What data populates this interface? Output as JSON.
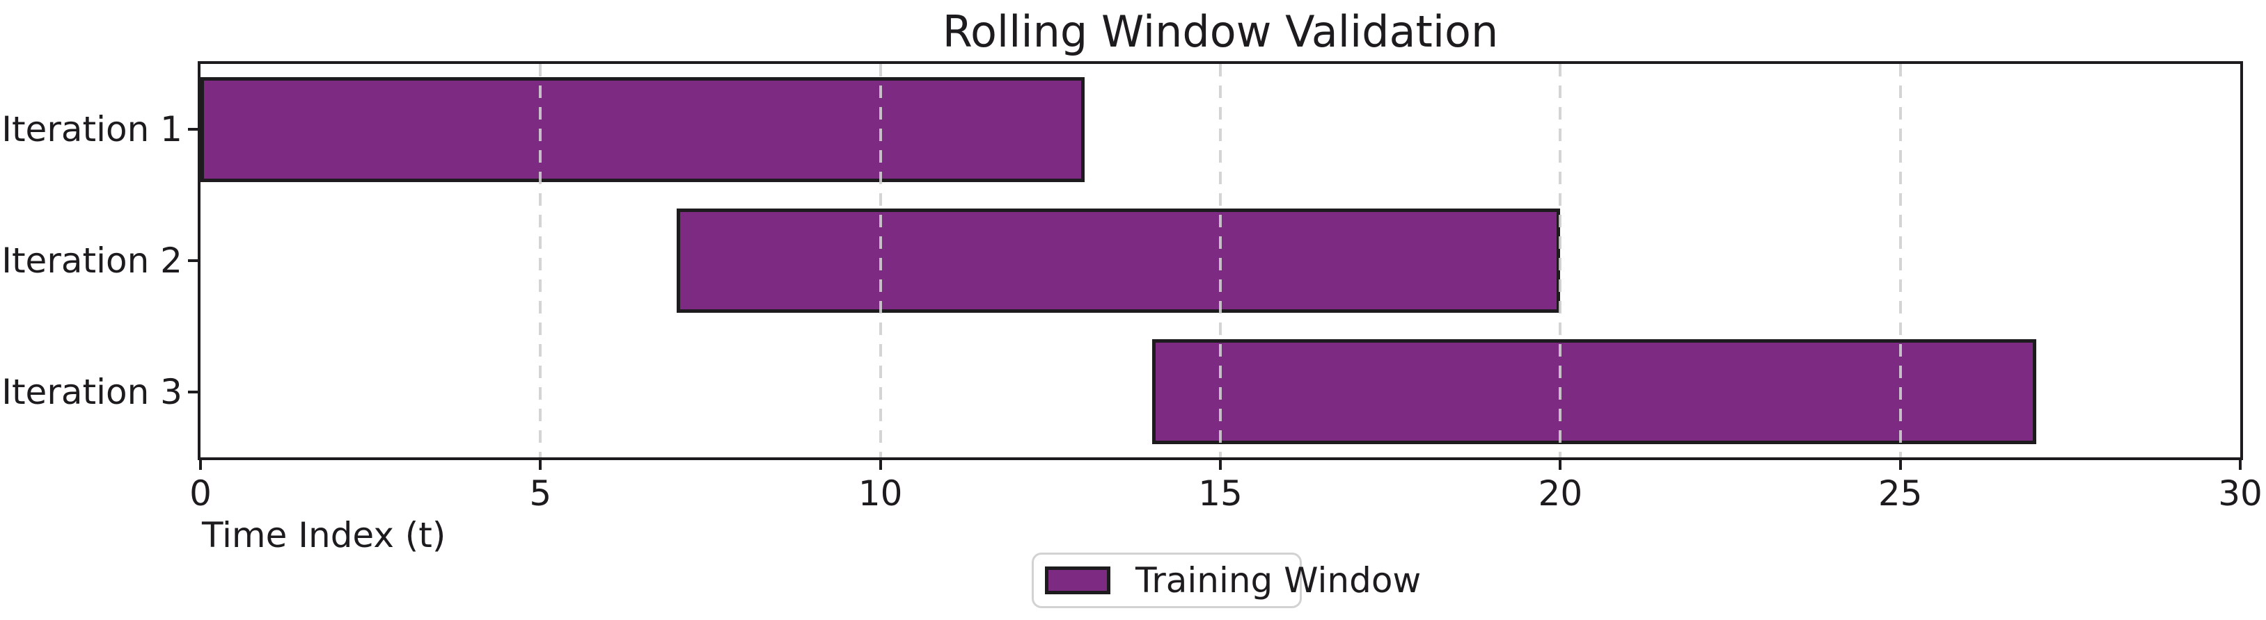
{
  "chart_data": {
    "type": "bar",
    "orientation": "horizontal",
    "title": "Rolling Window Validation",
    "xlabel": "Time Index (t)",
    "ylabel": "",
    "categories": [
      "Iteration 1",
      "Iteration 2",
      "Iteration 3"
    ],
    "series": [
      {
        "name": "Training Window",
        "color": "#7c2a82",
        "edge_color": "#1d1b1e",
        "bars": [
          {
            "category": "Iteration 1",
            "start": 0,
            "end": 13
          },
          {
            "category": "Iteration 2",
            "start": 7,
            "end": 20
          },
          {
            "category": "Iteration 3",
            "start": 14,
            "end": 27
          }
        ]
      }
    ],
    "xlim": [
      0,
      30
    ],
    "x_ticks": [
      0,
      5,
      10,
      15,
      20,
      25,
      30
    ],
    "bar_height_fraction": 0.8,
    "grid": {
      "axis": "x",
      "style": "dashed",
      "color": "#cfcfcf",
      "drawn_above_bars": true
    },
    "legend": {
      "position": "lower center",
      "entries": [
        "Training Window"
      ]
    }
  },
  "colors": {
    "background": "#ffffff",
    "text": "#1d1b1e",
    "spine": "#1d1b1e",
    "grid": "#cfcfcf",
    "bar_fill": "#7c2a82",
    "bar_edge": "#1d1b1e",
    "legend_border": "#d2d2d2"
  }
}
